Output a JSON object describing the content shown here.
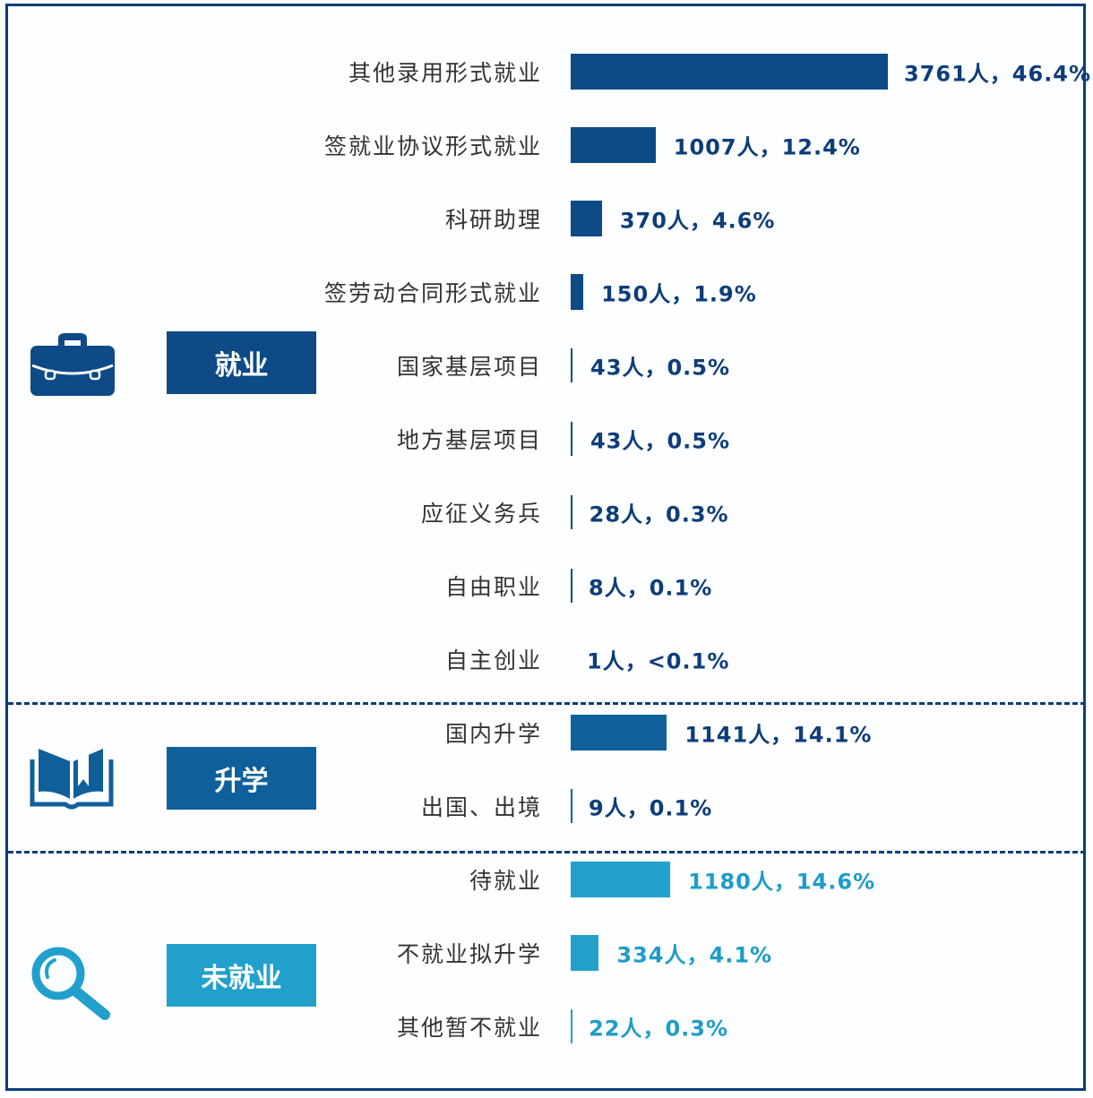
{
  "chart_data": {
    "type": "bar",
    "orientation": "horizontal",
    "colors": {
      "employed": "#0d4a86",
      "study": "#0f5f9b",
      "unemployed": "#21a0cc",
      "border": "#0d3d7a"
    },
    "groups": [
      {
        "name": "就业",
        "color": "#0d4a86",
        "icon": "briefcase-icon",
        "items": [
          {
            "label": "其他录用形式就业",
            "value": 3761,
            "text": "3761人，46.4%"
          },
          {
            "label": "签就业协议形式就业",
            "value": 1007,
            "text": "1007人，12.4%"
          },
          {
            "label": "科研助理",
            "value": 370,
            "text": "370人，4.6%"
          },
          {
            "label": "签劳动合同形式就业",
            "value": 150,
            "text": "150人，1.9%"
          },
          {
            "label": "国家基层项目",
            "value": 43,
            "text": "43人，0.5%"
          },
          {
            "label": "地方基层项目",
            "value": 43,
            "text": "43人，0.5%"
          },
          {
            "label": "应征义务兵",
            "value": 28,
            "text": "28人，0.3%"
          },
          {
            "label": "自由职业",
            "value": 8,
            "text": "8人，0.1%"
          },
          {
            "label": "自主创业",
            "value": 1,
            "text": "1人，<0.1%"
          }
        ]
      },
      {
        "name": "升学",
        "color": "#0f5f9b",
        "icon": "book-icon",
        "items": [
          {
            "label": "国内升学",
            "value": 1141,
            "text": "1141人，14.1%"
          },
          {
            "label": "出国、出境",
            "value": 9,
            "text": "9人，0.1%"
          }
        ]
      },
      {
        "name": "未就业",
        "color": "#21a0cc",
        "icon": "magnifier-icon",
        "items": [
          {
            "label": "待就业",
            "value": 1180,
            "text": "1180人，14.6%"
          },
          {
            "label": "不就业拟升学",
            "value": 334,
            "text": "334人，4.1%"
          },
          {
            "label": "其他暂不就业",
            "value": 22,
            "text": "22人，0.3%"
          }
        ]
      }
    ]
  }
}
